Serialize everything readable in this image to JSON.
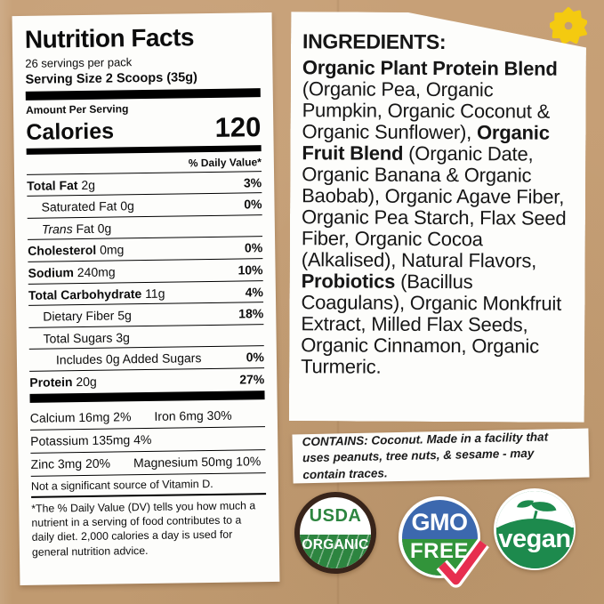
{
  "colors": {
    "kraft": "#c49e74",
    "paper": "#fdfdfb",
    "usda-ring": "#38241a",
    "usda-green": "#2d8540",
    "gmo-blue": "#3c68ae",
    "gmo-green": "#32943a",
    "check-red": "#e72e4f",
    "vegan-green": "#1d8a4d",
    "flower-yellow": "#f4ca10"
  },
  "icons": {
    "flower": "flower-icon",
    "checkmark": "checkmark-icon",
    "leaf": "leaf-icon"
  },
  "nutrition": {
    "title": "Nutrition Facts",
    "servings_per_pack": "26 servings per pack",
    "serving_size": "Serving Size 2 Scoops (35g)",
    "amount_per_serving": "Amount Per Serving",
    "calories_label": "Calories",
    "calories_value": "120",
    "daily_value_header": "% Daily Value*",
    "rows": [
      {
        "label": "Total Fat",
        "amount": "2g",
        "dv": "3%"
      },
      {
        "label": "Saturated Fat",
        "amount": "0g",
        "dv": "0%"
      },
      {
        "label": "Trans",
        "amount": "Fat 0g",
        "dv": ""
      },
      {
        "label": "Cholesterol",
        "amount": "0mg",
        "dv": "0%"
      },
      {
        "label": "Sodium",
        "amount": "240mg",
        "dv": "10%"
      },
      {
        "label": "Total Carbohydrate",
        "amount": "11g",
        "dv": "4%"
      },
      {
        "label": "Dietary Fiber",
        "amount": "5g",
        "dv": "18%"
      },
      {
        "label": "Total Sugars",
        "amount": "3g",
        "dv": ""
      },
      {
        "label": "Includes 0g Added Sugars",
        "amount": "",
        "dv": "0%"
      },
      {
        "label": "Protein",
        "amount": "20g",
        "dv": "27%"
      }
    ],
    "minerals": [
      {
        "left": "Calcium 16mg 2%",
        "right": "Iron 6mg 30%"
      },
      {
        "left": "Potassium 135mg 4%",
        "right": ""
      },
      {
        "left": "Zinc 3mg 20%",
        "right": "Magnesium 50mg 10%"
      }
    ],
    "not_significant": "Not a significant source of Vitamin D.",
    "footnote": "*The % Daily Value (DV) tells you how much a nutrient in a serving of food contributes to a daily diet. 2,000 calories a day is used for general nutrition advice."
  },
  "ingredients": {
    "heading": "INGREDIENTS:",
    "segments": [
      {
        "t": "Organic Plant Protein Blend",
        "b": true
      },
      {
        "t": " (Organic Pea, Organic Pumpkin, Organic Coconut & Organic Sunflower), ",
        "b": false
      },
      {
        "t": "Organic Fruit Blend",
        "b": true
      },
      {
        "t": " (Organic Date, Organic Banana & Organic Baobab), Organic Agave Fiber, Organic Pea Starch, Flax Seed Fiber, Organic Cocoa (Alkalised), Natural Flavors, ",
        "b": false
      },
      {
        "t": "Probiotics",
        "b": true
      },
      {
        "t": " (Bacillus Coagulans), Organic Monkfruit Extract, Milled Flax Seeds, Organic Cinnamon, Organic Turmeric.",
        "b": false
      }
    ]
  },
  "contains": {
    "text": "CONTAINS: Coconut. Made in a facility that uses peanuts, tree nuts, & sesame - may contain traces."
  },
  "badges": {
    "usda": {
      "top": "USDA",
      "bottom": "ORGANIC"
    },
    "gmo": {
      "top": "GMO",
      "bottom": "FREE"
    },
    "vegan": {
      "label": "vegan"
    }
  }
}
